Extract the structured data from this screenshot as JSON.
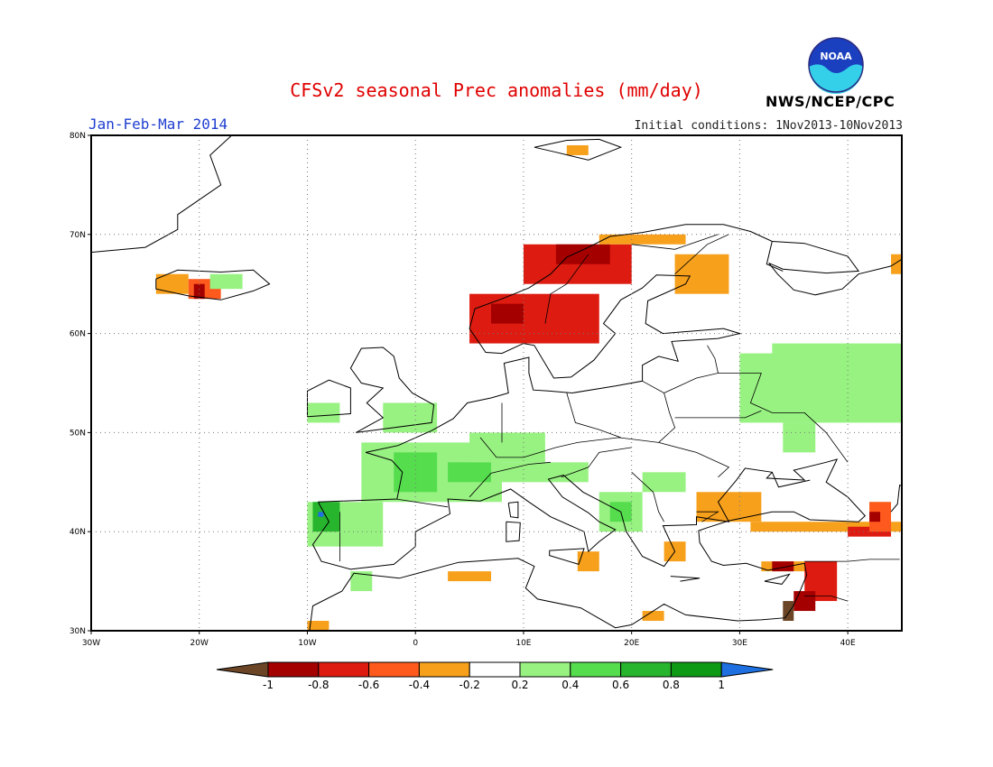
{
  "header": {
    "title": "CFSv2 seasonal Prec anomalies (mm/day)",
    "period": "Jan-Feb-Mar 2014",
    "initial_conditions": "Initial conditions: 1Nov2013-10Nov2013",
    "agency": "NWS/NCEP/CPC",
    "logo_text": "NOAA"
  },
  "map": {
    "lon_ticks": [
      "30W",
      "20W",
      "10W",
      "0",
      "10E",
      "20E",
      "30E",
      "40E"
    ],
    "lat_ticks": [
      "80N",
      "70N",
      "60N",
      "50N",
      "40N",
      "30N"
    ]
  },
  "colorbar": {
    "labels": [
      "-1",
      "-0.8",
      "-0.6",
      "-0.4",
      "-0.2",
      "0.2",
      "0.4",
      "0.6",
      "0.8",
      "1"
    ],
    "colors": [
      "#6b4526",
      "#a50000",
      "#dd1b10",
      "#ff5a1e",
      "#f7a01c",
      "#ffffff",
      "#98f282",
      "#55dd4e",
      "#26b52c",
      "#0f9a16",
      "#1e6fe0"
    ]
  },
  "anomaly_regions": [
    {
      "name": "Norway coast dry",
      "level": "-0.6"
    },
    {
      "name": "Iceland dry",
      "level": "-0.8"
    },
    {
      "name": "Western Europe wet",
      "level": "0.4"
    },
    {
      "name": "NW Iberia wet",
      "level": "0.8"
    },
    {
      "name": "Russia wet",
      "level": "0.2"
    },
    {
      "name": "Turkey / Caucasus dry",
      "level": "-0.4"
    }
  ]
}
